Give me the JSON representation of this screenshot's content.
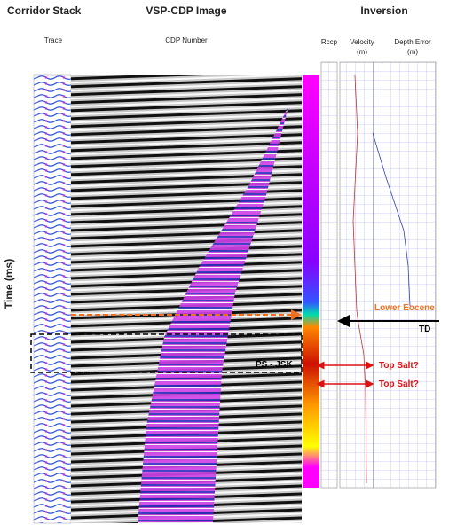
{
  "headers": {
    "corridor_stack": "Corridor Stack",
    "vsp_cdp_image": "VSP-CDP Image",
    "inversion": "Inversion"
  },
  "subheaders": {
    "trace": "Trace",
    "cdp_number": "CDP Number",
    "rccp": "Rccp",
    "velocity": "Velocity",
    "velocity_unit": "(m)",
    "depth_error": "Depth Error",
    "depth_error_unit": "(m)"
  },
  "axis_label": "Time (ms)",
  "annotations": {
    "lower_eocene": "Lower Eocene",
    "td": "TD",
    "ps_jsk": "PS - JSK",
    "top_salt_1": "Top Salt?",
    "top_salt_2": "Top Salt?"
  }
}
